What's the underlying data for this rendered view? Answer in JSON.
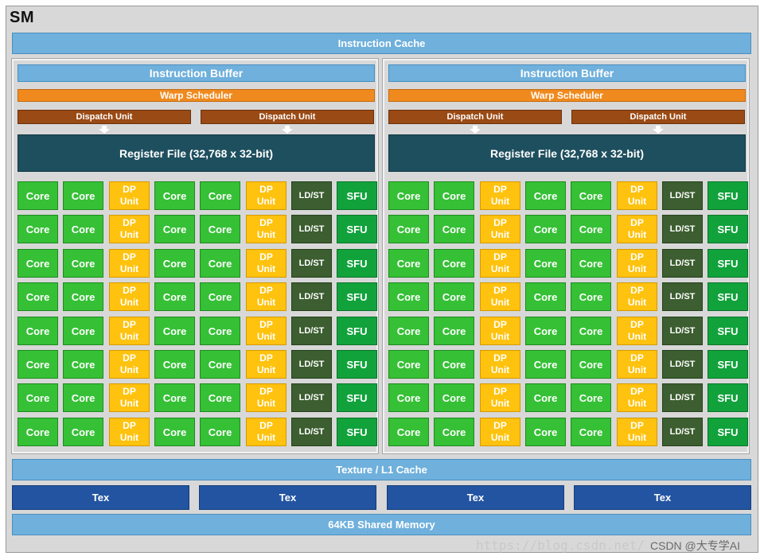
{
  "sm_label": "SM",
  "instruction_cache": "Instruction Cache",
  "halves": [
    {
      "instruction_buffer": "Instruction Buffer",
      "warp_scheduler": "Warp Scheduler",
      "dispatch_units": [
        "Dispatch Unit",
        "Dispatch Unit"
      ],
      "register_file": "Register File (32,768 x 32-bit)"
    },
    {
      "instruction_buffer": "Instruction Buffer",
      "warp_scheduler": "Warp Scheduler",
      "dispatch_units": [
        "Dispatch Unit",
        "Dispatch Unit"
      ],
      "register_file": "Register File (32,768 x 32-bit)"
    }
  ],
  "unit_grid": {
    "rows": 8,
    "columns": [
      {
        "type": "core",
        "label": "Core"
      },
      {
        "type": "core",
        "label": "Core"
      },
      {
        "type": "dp",
        "label": "DP Unit"
      },
      {
        "type": "core",
        "label": "Core"
      },
      {
        "type": "core",
        "label": "Core"
      },
      {
        "type": "dp",
        "label": "DP Unit"
      },
      {
        "type": "ldst",
        "label": "LD/ST"
      },
      {
        "type": "sfu",
        "label": "SFU"
      }
    ]
  },
  "texture_l1_cache": "Texture / L1 Cache",
  "tex_units": [
    "Tex",
    "Tex",
    "Tex",
    "Tex"
  ],
  "shared_memory": "64KB Shared Memory",
  "watermark": "https://blog.csdn.net/",
  "credit": "CSDN @大专学AI",
  "colors": {
    "core": "#36c036",
    "dp_unit": "#ffc20e",
    "ldst": "#3c5e30",
    "sfu": "#11a23c",
    "warp_scheduler": "#f08a1e",
    "dispatch_unit": "#9a4a14",
    "register_file": "#1e4f5f",
    "cache": "#6fb0dc",
    "tex": "#2254a2"
  }
}
